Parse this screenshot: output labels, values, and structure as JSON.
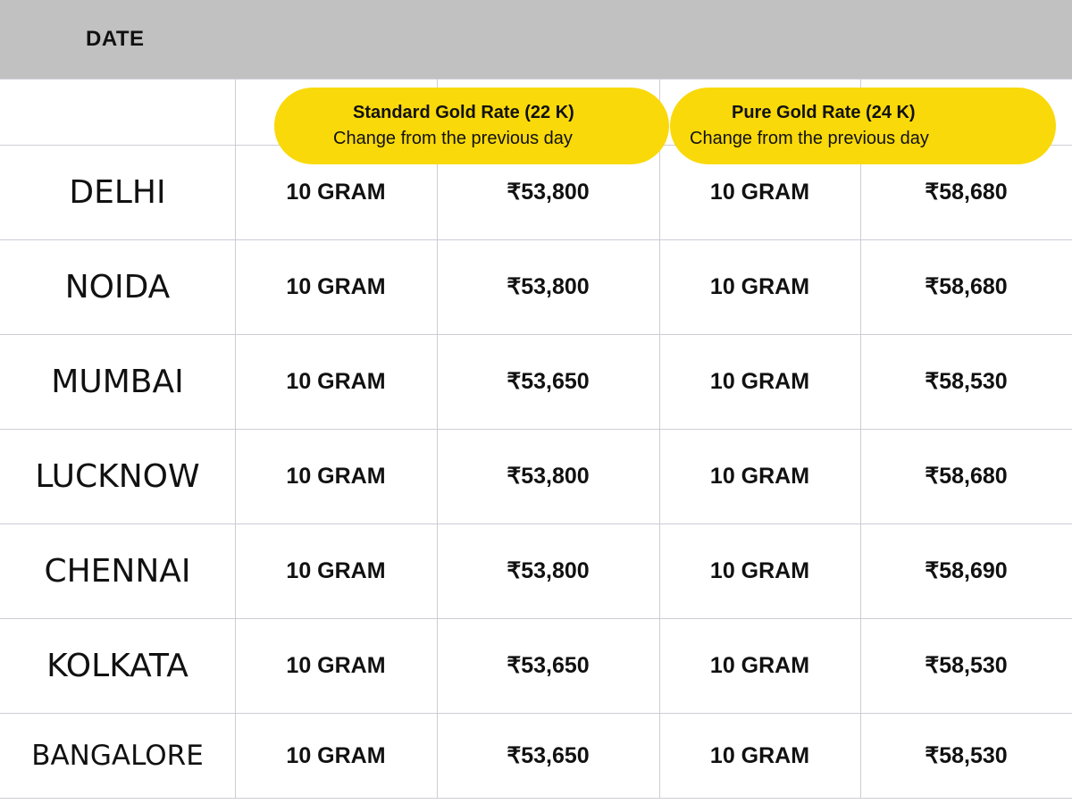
{
  "header": {
    "date_label": "DATE"
  },
  "columns": {
    "standard": {
      "title": "Standard Gold Rate (22 K)",
      "subtitle": "Change from the previous day"
    },
    "pure": {
      "title": "Pure Gold Rate (24 K)",
      "subtitle": "Change from the previous day"
    }
  },
  "colors": {
    "accent": "#f9d90a",
    "header_bg": "#c1c1c1"
  },
  "rows": [
    {
      "city": "DELHI",
      "qty22": "10 GRAM",
      "rate22": "₹53,800",
      "qty24": "10 GRAM",
      "rate24": "₹58,680"
    },
    {
      "city": "NOIDA",
      "qty22": "10 GRAM",
      "rate22": "₹53,800",
      "qty24": "10 GRAM",
      "rate24": "₹58,680"
    },
    {
      "city": "MUMBAI",
      "qty22": "10 GRAM",
      "rate22": "₹53,650",
      "qty24": "10 GRAM",
      "rate24": "₹58,530"
    },
    {
      "city": "LUCKNOW",
      "qty22": "10 GRAM",
      "rate22": "₹53,800",
      "qty24": "10 GRAM",
      "rate24": "₹58,680"
    },
    {
      "city": "CHENNAI",
      "qty22": "10 GRAM",
      "rate22": "₹53,800",
      "qty24": "10 GRAM",
      "rate24": "₹58,690"
    },
    {
      "city": "KOLKATA",
      "qty22": "10 GRAM",
      "rate22": "₹53,650",
      "qty24": "10 GRAM",
      "rate24": "₹58,530"
    },
    {
      "city": "BANGALORE",
      "qty22": "10 GRAM",
      "rate22": "₹53,650",
      "qty24": "10 GRAM",
      "rate24": "₹58,530"
    }
  ]
}
